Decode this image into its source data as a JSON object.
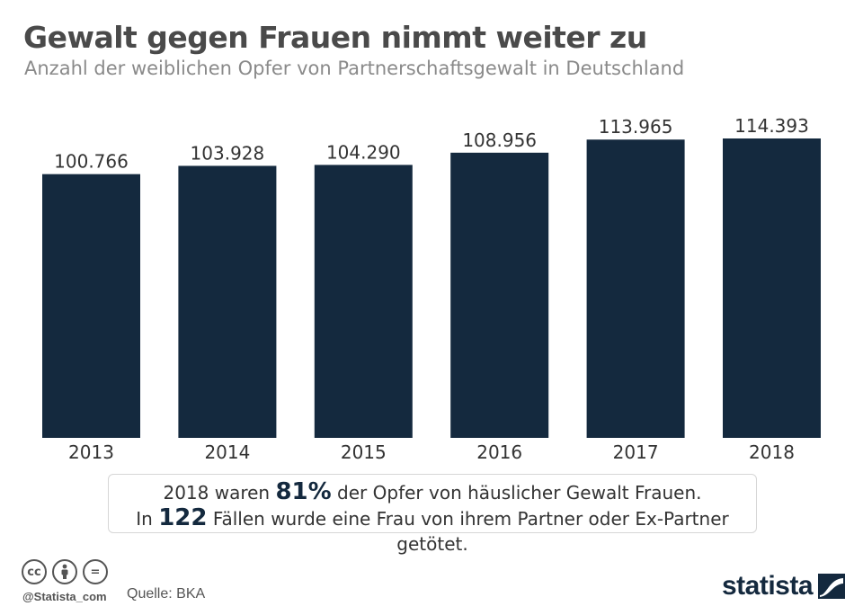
{
  "header": {
    "title": "Gewalt gegen Frauen nimmt weiter zu",
    "subtitle": "Anzahl der weiblichen Opfer von Partnerschaftsgewalt in Deutschland"
  },
  "chart_data": {
    "type": "bar",
    "title": "Gewalt gegen Frauen nimmt weiter zu",
    "subtitle": "Anzahl der weiblichen Opfer von Partnerschaftsgewalt in Deutschland",
    "xlabel": "",
    "ylabel": "",
    "categories": [
      "2013",
      "2014",
      "2015",
      "2016",
      "2017",
      "2018"
    ],
    "values": [
      100766,
      103928,
      104290,
      108956,
      113965,
      114393
    ],
    "value_labels": [
      "100.766",
      "103.928",
      "104.290",
      "108.956",
      "113.965",
      "114.393"
    ],
    "ylim": [
      0,
      114393
    ],
    "grid": false,
    "legend": "none",
    "bar_color": "#14293e"
  },
  "note": {
    "line1_before": "2018 waren ",
    "line1_highlight": "81%",
    "line1_after": " der Opfer von häuslicher Gewalt Frauen.",
    "line2_before": "In ",
    "line2_highlight": "122",
    "line2_after": " Fällen wurde eine Frau von ihrem Partner oder Ex-Partner getötet."
  },
  "footer": {
    "license_icons": [
      "cc",
      "by",
      "="
    ],
    "handle": "@Statista_com",
    "source": "Quelle: BKA",
    "brand": "statista"
  },
  "colors": {
    "bar": "#14293e",
    "title": "#4a4a4a",
    "subtitle": "#8a8a8a",
    "highlight": "#14293e"
  }
}
